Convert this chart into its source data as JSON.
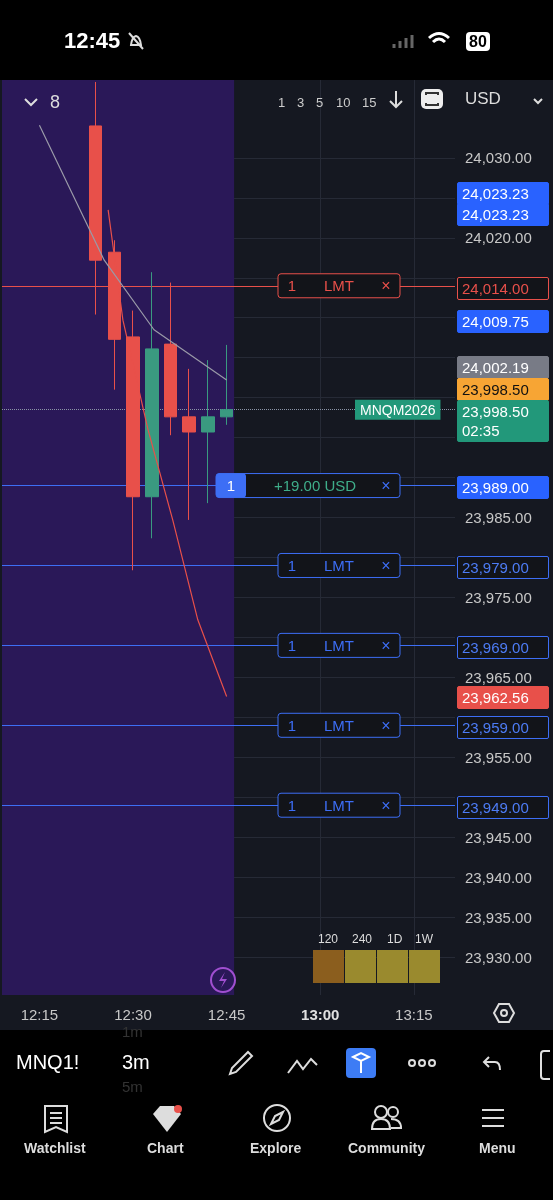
{
  "chart_data": {
    "type": "candlestick",
    "x": [
      12.4,
      12.45,
      12.5,
      12.55,
      12.6,
      12.65,
      12.7,
      12.75
    ],
    "ohlc": [
      [
        24034.0,
        24039.5,
        24010.4,
        24017.2
      ],
      [
        24018.2,
        24019.7,
        24001.0,
        24007.3
      ],
      [
        24007.6,
        24010.9,
        23978.4,
        23987.6
      ],
      [
        23987.6,
        24015.7,
        23982.4,
        24006.1
      ],
      [
        24006.7,
        24014.4,
        23995.3,
        23997.6
      ],
      [
        23997.6,
        24003.6,
        23984.7,
        23995.7
      ],
      [
        23995.7,
        24004.7,
        23986.8,
        23997.6
      ],
      [
        23997.6,
        24006.6,
        23996.6,
        23998.5
      ]
    ],
    "series": [
      {
        "type": "line",
        "color": "#e8504a",
        "x": [
          12.4335,
          12.473,
          12.54,
          12.606,
          12.673,
          12.75
        ],
        "values": [
          24023.5,
          24009.7,
          23996.0,
          23984.7,
          23972.2,
          23962.6
        ]
      },
      {
        "type": "line",
        "color": "#9a9aa8",
        "x": [
          12.25,
          12.423,
          12.556,
          12.75
        ],
        "values": [
          24034.1,
          24017.2,
          24008.5,
          24002.2
        ]
      }
    ],
    "xlim": [
      12.15,
      13.36
    ],
    "xticks": [
      {
        "value": 12.25,
        "label": "12:15"
      },
      {
        "value": 12.5,
        "label": "12:30"
      },
      {
        "value": 12.75,
        "label": "12:45"
      },
      {
        "value": 13,
        "label": "13:00"
      },
      {
        "value": 13.25,
        "label": "13:15"
      }
    ],
    "ylim": [
      23925.25,
      24039.75
    ],
    "yticks": [
      {
        "value": 23930,
        "label": "23,930.00"
      },
      {
        "value": 23935,
        "label": "23,935.00"
      },
      {
        "value": 23940,
        "label": "23,940.00"
      },
      {
        "value": 23945,
        "label": "23,945.00"
      },
      {
        "value": 23950,
        "label": null
      },
      {
        "value": 23955,
        "label": "23,955.00"
      },
      {
        "value": 23960,
        "label": null
      },
      {
        "value": 23965,
        "label": "23,965.00"
      },
      {
        "value": 23970,
        "label": null
      },
      {
        "value": 23975,
        "label": "23,975.00"
      },
      {
        "value": 23980,
        "label": null
      },
      {
        "value": 23985,
        "label": "23,985.00"
      },
      {
        "value": 23990,
        "label": null
      },
      {
        "value": 23995,
        "label": null
      },
      {
        "value": 24000,
        "label": null
      },
      {
        "value": 24005,
        "label": null
      },
      {
        "value": 24010,
        "label": null
      },
      {
        "value": 24015,
        "label": null
      },
      {
        "value": 24020,
        "label": "24,020.00"
      },
      {
        "value": 24025,
        "label": null
      },
      {
        "value": 24030,
        "label": "24,030.00"
      }
    ],
    "grid": true,
    "bands": [
      {
        "axis": "x",
        "from": 12.15,
        "to": 12.77,
        "color": "#2a1858"
      }
    ],
    "ref_lines": [
      {
        "axis": "y",
        "value": 24014,
        "label": "1 LMT ×",
        "color": "#e8504a",
        "line_style": "solid"
      },
      {
        "axis": "y",
        "value": 23998.5,
        "label": "MNQM2026",
        "color": "#8a93a6",
        "line_style": "dotted"
      },
      {
        "axis": "y",
        "value": 23989,
        "label": "1 +19.00 USD ×",
        "color": "#3d6ef5",
        "line_style": "solid"
      },
      {
        "axis": "y",
        "value": 23979,
        "label": "1 LMT ×",
        "color": "#3d6ef5",
        "line_style": "solid"
      },
      {
        "axis": "y",
        "value": 23969,
        "label": "1 LMT ×",
        "color": "#3d6ef5",
        "line_style": "solid"
      },
      {
        "axis": "y",
        "value": 23959,
        "label": "1 LMT ×",
        "color": "#3d6ef5",
        "line_style": "solid"
      },
      {
        "axis": "y",
        "value": 23949,
        "label": "1 LMT ×",
        "color": "#3d6ef5",
        "line_style": "solid"
      }
    ],
    "annotations": [
      "12:45",
      "80",
      "8",
      "1",
      "3",
      "5",
      "10",
      "15",
      "USD",
      "MNQ1!",
      "3m",
      "1m",
      "5m",
      "120",
      "240",
      "1D",
      "1W",
      "Watchlist",
      "Chart",
      "Explore",
      "Community",
      "Menu",
      "24,023.23",
      "24,023.23",
      "24,014.00",
      "24,009.75",
      "24,002.19",
      "23,998.50",
      "23,998.50 02:35",
      "23,989.00",
      "23,979.00",
      "23,969.00",
      "23,962.56",
      "23,959.00",
      "23,949.00"
    ]
  }
}
